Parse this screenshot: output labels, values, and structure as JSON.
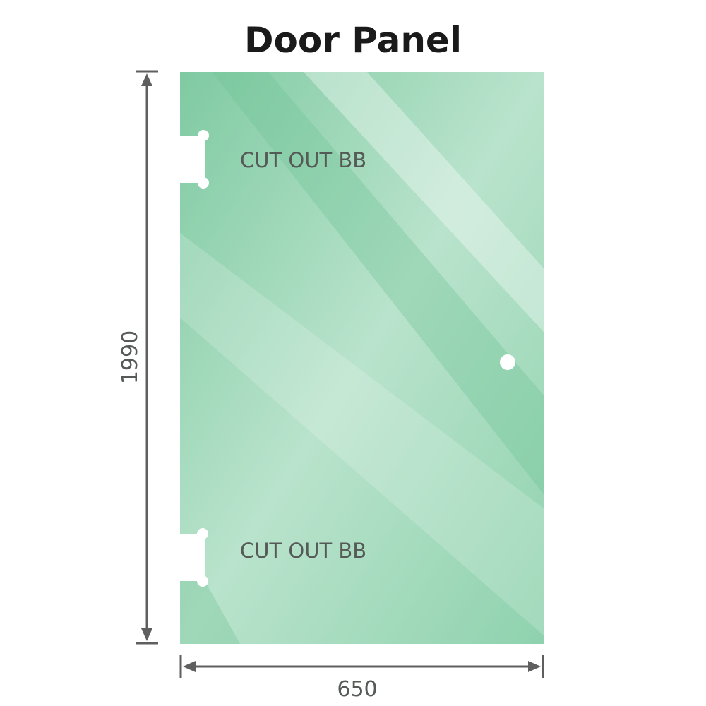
{
  "title": "Door Panel",
  "panel": {
    "color": "#86cfa8",
    "cutout_labels": [
      "CUT OUT BB",
      "CUT OUT BB"
    ]
  },
  "dimensions": {
    "height": "1990",
    "width": "650",
    "line_color": "#5f5f5f"
  }
}
